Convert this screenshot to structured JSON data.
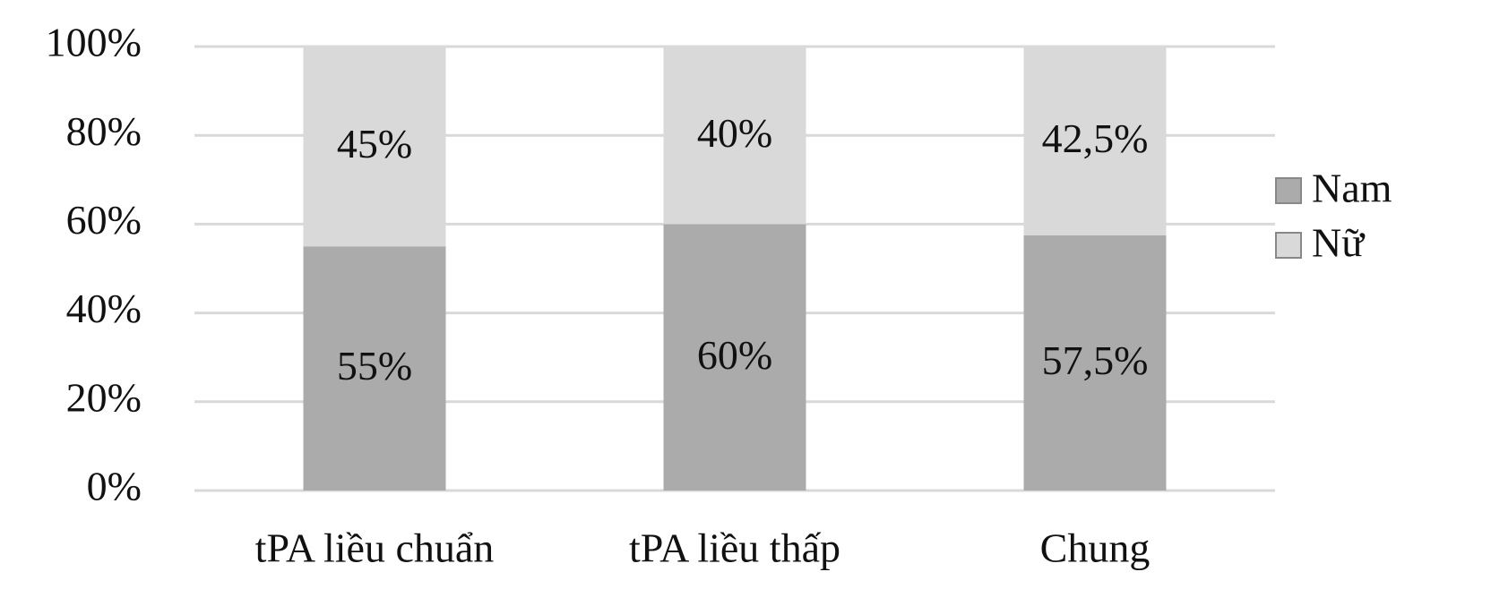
{
  "chart_data": {
    "type": "stacked_bar",
    "categories": [
      "tPA liều chuẩn",
      "tPA liều thấp",
      "Chung"
    ],
    "series": [
      {
        "name": "Nam",
        "color": "#ababab",
        "values": [
          55,
          60,
          57.5
        ],
        "value_labels": [
          "55%",
          "60%",
          "57,5%"
        ]
      },
      {
        "name": "Nữ",
        "color": "#d9d9d9",
        "values": [
          45,
          40,
          42.5
        ],
        "value_labels": [
          "45%",
          "40%",
          "42,5%"
        ]
      }
    ],
    "ylim": [
      0,
      100
    ],
    "yticks": [
      {
        "value": 0,
        "label": "0%"
      },
      {
        "value": 20,
        "label": "20%"
      },
      {
        "value": 40,
        "label": "40%"
      },
      {
        "value": 60,
        "label": "60%"
      },
      {
        "value": 80,
        "label": "80%"
      },
      {
        "value": 100,
        "label": "100%"
      }
    ],
    "grid": true,
    "legend": "right"
  }
}
